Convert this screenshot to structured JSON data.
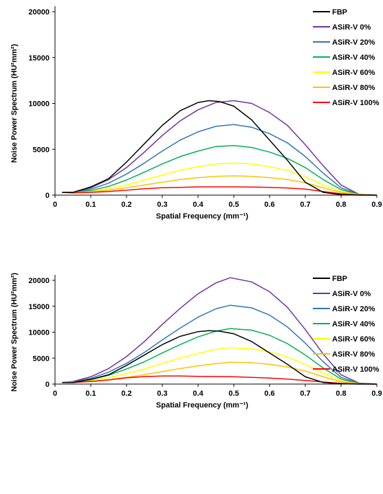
{
  "chart_data": [
    {
      "type": "line",
      "xlabel": "Spatial Frequency (mm⁻¹)",
      "ylabel": "Noise Power Spectrum (HU²mm²)",
      "xlim": [
        0,
        0.9
      ],
      "ylim": [
        0,
        20000
      ],
      "x_ticks": [
        0,
        0.1,
        0.2,
        0.3,
        0.4,
        0.5,
        0.6,
        0.7,
        0.8,
        0.9
      ],
      "y_ticks": [
        0,
        5000,
        10000,
        15000,
        20000
      ],
      "grid": false,
      "legend_position": "top-right",
      "series": [
        {
          "name": "FBP",
          "color": "#000000",
          "x": [
            0.02,
            0.05,
            0.1,
            0.15,
            0.2,
            0.25,
            0.3,
            0.35,
            0.4,
            0.43,
            0.46,
            0.5,
            0.55,
            0.6,
            0.65,
            0.7,
            0.75,
            0.8,
            0.85,
            0.9
          ],
          "y": [
            300,
            300,
            900,
            1800,
            3600,
            5600,
            7600,
            9200,
            10100,
            10300,
            10200,
            9700,
            8200,
            6000,
            3800,
            1400,
            300,
            50,
            0,
            0
          ]
        },
        {
          "name": "ASiR-V 0%",
          "color": "#7030A0",
          "x": [
            0.02,
            0.05,
            0.1,
            0.15,
            0.2,
            0.25,
            0.3,
            0.35,
            0.4,
            0.45,
            0.5,
            0.55,
            0.6,
            0.65,
            0.7,
            0.75,
            0.8,
            0.85,
            0.9
          ],
          "y": [
            300,
            300,
            800,
            1700,
            3000,
            4700,
            6500,
            8100,
            9300,
            10100,
            10300,
            10000,
            9000,
            7600,
            5500,
            3200,
            1100,
            100,
            0
          ]
        },
        {
          "name": "ASiR-V 20%",
          "color": "#2E75B6",
          "x": [
            0.02,
            0.05,
            0.1,
            0.15,
            0.2,
            0.25,
            0.3,
            0.35,
            0.4,
            0.45,
            0.5,
            0.55,
            0.6,
            0.65,
            0.7,
            0.75,
            0.8,
            0.85,
            0.9
          ],
          "y": [
            300,
            300,
            650,
            1300,
            2300,
            3500,
            4800,
            6000,
            6900,
            7500,
            7700,
            7400,
            6700,
            5700,
            4200,
            2400,
            800,
            100,
            0
          ]
        },
        {
          "name": "ASiR-V 40%",
          "color": "#00B050",
          "x": [
            0.02,
            0.05,
            0.1,
            0.15,
            0.2,
            0.25,
            0.3,
            0.35,
            0.4,
            0.45,
            0.5,
            0.55,
            0.6,
            0.65,
            0.7,
            0.75,
            0.8,
            0.85,
            0.9
          ],
          "y": [
            300,
            300,
            500,
            950,
            1650,
            2500,
            3400,
            4200,
            4800,
            5300,
            5400,
            5200,
            4700,
            4000,
            3000,
            1700,
            600,
            80,
            0
          ]
        },
        {
          "name": "ASiR-V 60%",
          "color": "#FFFF00",
          "x": [
            0.02,
            0.05,
            0.1,
            0.15,
            0.2,
            0.25,
            0.3,
            0.35,
            0.4,
            0.45,
            0.5,
            0.55,
            0.6,
            0.65,
            0.7,
            0.75,
            0.8,
            0.85,
            0.9
          ],
          "y": [
            300,
            250,
            400,
            700,
            1100,
            1650,
            2200,
            2700,
            3100,
            3400,
            3500,
            3400,
            3100,
            2700,
            2000,
            1100,
            400,
            50,
            0
          ]
        },
        {
          "name": "ASiR-V 80%",
          "color": "#FFC000",
          "x": [
            0.02,
            0.05,
            0.1,
            0.15,
            0.2,
            0.25,
            0.3,
            0.35,
            0.4,
            0.45,
            0.5,
            0.55,
            0.6,
            0.65,
            0.7,
            0.75,
            0.8,
            0.85,
            0.9
          ],
          "y": [
            300,
            250,
            350,
            550,
            800,
            1100,
            1400,
            1700,
            1900,
            2050,
            2100,
            2050,
            1900,
            1700,
            1350,
            800,
            300,
            40,
            0
          ]
        },
        {
          "name": "ASiR-V 100%",
          "color": "#FF0000",
          "x": [
            0.02,
            0.05,
            0.1,
            0.15,
            0.2,
            0.25,
            0.3,
            0.35,
            0.4,
            0.45,
            0.5,
            0.55,
            0.6,
            0.65,
            0.7,
            0.75,
            0.8,
            0.85,
            0.9
          ],
          "y": [
            300,
            250,
            300,
            400,
            550,
            700,
            800,
            850,
            900,
            900,
            900,
            880,
            850,
            780,
            650,
            400,
            150,
            20,
            0
          ]
        }
      ]
    },
    {
      "type": "line",
      "xlabel": "Spatial Frequency (mm⁻¹)",
      "ylabel": "Noise Power Spectrum (HU²mm²)",
      "xlim": [
        0,
        0.9
      ],
      "ylim": [
        0,
        20000
      ],
      "x_ticks": [
        0,
        0.1,
        0.2,
        0.3,
        0.4,
        0.5,
        0.6,
        0.7,
        0.8,
        0.9
      ],
      "y_ticks": [
        0,
        5000,
        10000,
        15000,
        20000
      ],
      "grid": false,
      "legend_position": "top-right",
      "series": [
        {
          "name": "FBP",
          "color": "#000000",
          "x": [
            0.02,
            0.05,
            0.1,
            0.15,
            0.2,
            0.25,
            0.3,
            0.35,
            0.4,
            0.43,
            0.46,
            0.5,
            0.55,
            0.6,
            0.65,
            0.7,
            0.75,
            0.8,
            0.85,
            0.9
          ],
          "y": [
            300,
            300,
            900,
            1800,
            3600,
            5600,
            7600,
            9200,
            10100,
            10300,
            10200,
            9700,
            8200,
            6000,
            3800,
            1400,
            300,
            50,
            0,
            0
          ]
        },
        {
          "name": "ASiR-V 0%",
          "color": "#7030A0",
          "x": [
            0.02,
            0.05,
            0.1,
            0.15,
            0.2,
            0.25,
            0.3,
            0.35,
            0.4,
            0.45,
            0.49,
            0.55,
            0.6,
            0.65,
            0.7,
            0.75,
            0.8,
            0.85,
            0.9
          ],
          "y": [
            300,
            500,
            1400,
            3000,
            5300,
            8200,
            11500,
            14600,
            17400,
            19500,
            20500,
            19700,
            17800,
            14800,
            10500,
            5800,
            1800,
            200,
            0
          ]
        },
        {
          "name": "ASiR-V 20%",
          "color": "#2E75B6",
          "x": [
            0.02,
            0.05,
            0.1,
            0.15,
            0.2,
            0.25,
            0.3,
            0.35,
            0.4,
            0.45,
            0.49,
            0.55,
            0.6,
            0.65,
            0.7,
            0.75,
            0.8,
            0.85,
            0.9
          ],
          "y": [
            300,
            450,
            1100,
            2300,
            4000,
            6100,
            8500,
            10800,
            12900,
            14500,
            15200,
            14700,
            13300,
            11000,
            7900,
            4300,
            1300,
            150,
            0
          ]
        },
        {
          "name": "ASiR-V 40%",
          "color": "#00B050",
          "x": [
            0.02,
            0.05,
            0.1,
            0.15,
            0.2,
            0.25,
            0.3,
            0.35,
            0.4,
            0.45,
            0.49,
            0.55,
            0.6,
            0.65,
            0.7,
            0.75,
            0.8,
            0.85,
            0.9
          ],
          "y": [
            300,
            400,
            850,
            1700,
            2900,
            4300,
            6000,
            7600,
            9100,
            10200,
            10700,
            10400,
            9400,
            7800,
            5600,
            3100,
            950,
            100,
            0
          ]
        },
        {
          "name": "ASiR-V 60%",
          "color": "#FFFF00",
          "x": [
            0.02,
            0.05,
            0.1,
            0.15,
            0.2,
            0.25,
            0.3,
            0.35,
            0.4,
            0.45,
            0.49,
            0.55,
            0.6,
            0.65,
            0.7,
            0.75,
            0.8,
            0.85,
            0.9
          ],
          "y": [
            300,
            350,
            650,
            1200,
            2000,
            2900,
            4000,
            5000,
            5900,
            6700,
            7000,
            6800,
            6200,
            5200,
            3800,
            2100,
            650,
            80,
            0
          ]
        },
        {
          "name": "ASiR-V 80%",
          "color": "#FFC000",
          "x": [
            0.02,
            0.05,
            0.1,
            0.15,
            0.2,
            0.25,
            0.3,
            0.35,
            0.4,
            0.45,
            0.49,
            0.55,
            0.6,
            0.65,
            0.7,
            0.75,
            0.8,
            0.85,
            0.9
          ],
          "y": [
            300,
            300,
            500,
            850,
            1300,
            1800,
            2400,
            3000,
            3500,
            3950,
            4200,
            4100,
            3800,
            3300,
            2500,
            1400,
            450,
            60,
            0
          ]
        },
        {
          "name": "ASiR-V 100%",
          "color": "#FF0000",
          "x": [
            0.02,
            0.05,
            0.1,
            0.15,
            0.2,
            0.25,
            0.3,
            0.35,
            0.4,
            0.45,
            0.5,
            0.55,
            0.6,
            0.65,
            0.7,
            0.75,
            0.8,
            0.85,
            0.9
          ],
          "y": [
            300,
            300,
            500,
            800,
            1200,
            1450,
            1550,
            1550,
            1500,
            1450,
            1400,
            1300,
            1150,
            950,
            700,
            400,
            150,
            20,
            0
          ]
        }
      ]
    }
  ]
}
